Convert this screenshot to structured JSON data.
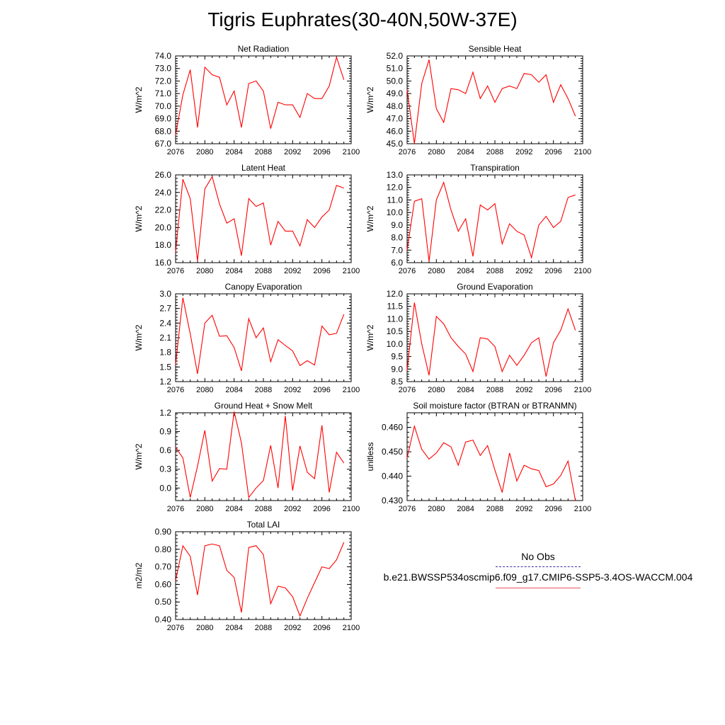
{
  "title": "Tigris Euphrates(30-40N,50W-37E)",
  "legend": {
    "obs_label": "No Obs",
    "model_label": "b.e21.BWSSP534oscmip6.f09_g17.CMIP6-SSP5-3.4OS-WACCM.004",
    "obs_color": "#3b2f9a",
    "model_color": "#e8555f"
  },
  "series_color": "#ff0000",
  "chart_data": [
    {
      "type": "line",
      "title": "Net Radiation",
      "ylabel": "W/m^2",
      "xlim": [
        2076,
        2100
      ],
      "ylim": [
        67.0,
        74.0
      ],
      "xticks": [
        2076,
        2080,
        2084,
        2088,
        2092,
        2096,
        2100
      ],
      "yticks": [
        "67.0",
        "68.0",
        "69.0",
        "70.0",
        "71.0",
        "72.0",
        "73.0",
        "74.0"
      ],
      "x": [
        2076,
        2077,
        2078,
        2079,
        2080,
        2081,
        2082,
        2083,
        2084,
        2085,
        2086,
        2087,
        2088,
        2089,
        2090,
        2091,
        2092,
        2093,
        2094,
        2095,
        2096,
        2097,
        2098,
        2099
      ],
      "values": [
        67.7,
        70.9,
        72.9,
        68.3,
        73.1,
        72.5,
        72.3,
        70.1,
        71.2,
        68.3,
        71.8,
        72.0,
        71.2,
        68.2,
        70.3,
        70.1,
        70.1,
        69.1,
        71.0,
        70.6,
        70.6,
        71.6,
        73.9,
        72.1
      ]
    },
    {
      "type": "line",
      "title": "Sensible Heat",
      "ylabel": "W/m^2",
      "xlim": [
        2076,
        2100
      ],
      "ylim": [
        45.0,
        52.0
      ],
      "xticks": [
        2076,
        2080,
        2084,
        2088,
        2092,
        2096,
        2100
      ],
      "yticks": [
        "45.0",
        "46.0",
        "47.0",
        "48.0",
        "49.0",
        "50.0",
        "51.0",
        "52.0"
      ],
      "x": [
        2076,
        2077,
        2078,
        2079,
        2080,
        2081,
        2082,
        2083,
        2084,
        2085,
        2086,
        2087,
        2088,
        2089,
        2090,
        2091,
        2092,
        2093,
        2094,
        2095,
        2096,
        2097,
        2098,
        2099
      ],
      "values": [
        49.3,
        45.0,
        49.8,
        51.7,
        47.8,
        46.7,
        49.4,
        49.3,
        49.0,
        50.7,
        48.6,
        49.6,
        48.3,
        49.4,
        49.6,
        49.4,
        50.6,
        50.5,
        49.9,
        50.5,
        48.3,
        49.7,
        48.6,
        47.2
      ]
    },
    {
      "type": "line",
      "title": "Latent Heat",
      "ylabel": "W/m^2",
      "xlim": [
        2076,
        2100
      ],
      "ylim": [
        16.0,
        26.0
      ],
      "xticks": [
        2076,
        2080,
        2084,
        2088,
        2092,
        2096,
        2100
      ],
      "yticks": [
        "16.0",
        "18.0",
        "20.0",
        "22.0",
        "24.0",
        "26.0"
      ],
      "x": [
        2076,
        2077,
        2078,
        2079,
        2080,
        2081,
        2082,
        2083,
        2084,
        2085,
        2086,
        2087,
        2088,
        2089,
        2090,
        2091,
        2092,
        2093,
        2094,
        2095,
        2096,
        2097,
        2098,
        2099
      ],
      "values": [
        17.2,
        25.5,
        23.3,
        16.2,
        24.4,
        25.8,
        22.7,
        20.5,
        21.0,
        16.8,
        23.3,
        22.4,
        22.8,
        18.0,
        20.7,
        19.6,
        19.6,
        17.9,
        20.9,
        20.0,
        21.2,
        22.0,
        24.8,
        24.5
      ]
    },
    {
      "type": "line",
      "title": "Transpiration",
      "ylabel": "W/m^2",
      "xlim": [
        2076,
        2100
      ],
      "ylim": [
        6.0,
        13.0
      ],
      "xticks": [
        2076,
        2080,
        2084,
        2088,
        2092,
        2096,
        2100
      ],
      "yticks": [
        "6.0",
        "7.0",
        "8.0",
        "9.0",
        "10.0",
        "11.0",
        "12.0",
        "13.0"
      ],
      "x": [
        2076,
        2077,
        2078,
        2079,
        2080,
        2081,
        2082,
        2083,
        2084,
        2085,
        2086,
        2087,
        2088,
        2089,
        2090,
        2091,
        2092,
        2093,
        2094,
        2095,
        2096,
        2097,
        2098,
        2099
      ],
      "values": [
        7.0,
        10.9,
        11.1,
        6.1,
        11.0,
        12.4,
        10.2,
        8.5,
        9.5,
        6.5,
        10.6,
        10.2,
        10.7,
        7.5,
        9.1,
        8.5,
        8.2,
        6.4,
        9.0,
        9.7,
        8.8,
        9.3,
        11.2,
        11.4
      ]
    },
    {
      "type": "line",
      "title": "Canopy Evaporation",
      "ylabel": "W/m^2",
      "xlim": [
        2076,
        2100
      ],
      "ylim": [
        1.2,
        3.0
      ],
      "xticks": [
        2076,
        2080,
        2084,
        2088,
        2092,
        2096,
        2100
      ],
      "yticks": [
        "1.2",
        "1.5",
        "1.8",
        "2.1",
        "2.4",
        "2.7",
        "3.0"
      ],
      "x": [
        2076,
        2077,
        2078,
        2079,
        2080,
        2081,
        2082,
        2083,
        2084,
        2085,
        2086,
        2087,
        2088,
        2089,
        2090,
        2091,
        2092,
        2093,
        2094,
        2095,
        2096,
        2097,
        2098,
        2099
      ],
      "values": [
        1.55,
        2.92,
        2.18,
        1.36,
        2.4,
        2.56,
        2.13,
        2.14,
        1.9,
        1.42,
        2.49,
        2.1,
        2.3,
        1.61,
        2.06,
        1.94,
        1.83,
        1.53,
        1.63,
        1.54,
        2.34,
        2.16,
        2.19,
        2.58
      ]
    },
    {
      "type": "line",
      "title": "Ground Evaporation",
      "ylabel": "W/m^2",
      "xlim": [
        2076,
        2100
      ],
      "ylim": [
        8.5,
        12.0
      ],
      "xticks": [
        2076,
        2080,
        2084,
        2088,
        2092,
        2096,
        2100
      ],
      "yticks": [
        "8.5",
        "9.0",
        "9.5",
        "10.0",
        "10.5",
        "11.0",
        "11.5",
        "12.0"
      ],
      "x": [
        2076,
        2077,
        2078,
        2079,
        2080,
        2081,
        2082,
        2083,
        2084,
        2085,
        2086,
        2087,
        2088,
        2089,
        2090,
        2091,
        2092,
        2093,
        2094,
        2095,
        2096,
        2097,
        2098,
        2099
      ],
      "values": [
        8.95,
        11.65,
        10.0,
        8.75,
        11.1,
        10.8,
        10.25,
        9.9,
        9.6,
        8.9,
        10.25,
        10.2,
        9.9,
        8.9,
        9.55,
        9.15,
        9.55,
        10.05,
        10.25,
        8.7,
        10.05,
        10.55,
        11.4,
        10.55
      ]
    },
    {
      "type": "line",
      "title": "Ground Heat + Snow Melt",
      "ylabel": "W/m^2",
      "xlim": [
        2076,
        2100
      ],
      "ylim": [
        -0.2,
        1.2
      ],
      "xticks": [
        2076,
        2080,
        2084,
        2088,
        2092,
        2096,
        2100
      ],
      "yticks": [
        "0.0",
        "0.3",
        "0.6",
        "0.9",
        "1.2"
      ],
      "ytick_values": [
        0.0,
        0.3,
        0.6,
        0.9,
        1.2
      ],
      "x": [
        2076,
        2077,
        2078,
        2079,
        2080,
        2081,
        2082,
        2083,
        2084,
        2085,
        2086,
        2087,
        2088,
        2089,
        2090,
        2091,
        2092,
        2093,
        2094,
        2095,
        2096,
        2097,
        2098,
        2099
      ],
      "values": [
        0.65,
        0.48,
        -0.15,
        0.35,
        0.92,
        0.11,
        0.31,
        0.3,
        1.22,
        0.72,
        -0.15,
        0.0,
        0.12,
        0.68,
        0.0,
        1.15,
        -0.04,
        0.67,
        0.25,
        0.15,
        1.0,
        -0.07,
        0.57,
        0.4
      ]
    },
    {
      "type": "line",
      "title": "Soil moisture factor (BTRAN or BTRANMN)",
      "ylabel": "unitless",
      "xlim": [
        2076,
        2100
      ],
      "ylim": [
        0.43,
        0.466
      ],
      "xticks": [
        2076,
        2080,
        2084,
        2088,
        2092,
        2096,
        2100
      ],
      "yticks": [
        "0.430",
        "0.440",
        "0.450",
        "0.460"
      ],
      "ytick_values": [
        0.43,
        0.44,
        0.45,
        0.46
      ],
      "x": [
        2076,
        2077,
        2078,
        2079,
        2080,
        2081,
        2082,
        2083,
        2084,
        2085,
        2086,
        2087,
        2088,
        2089,
        2090,
        2091,
        2092,
        2093,
        2094,
        2095,
        2096,
        2097,
        2098,
        2099
      ],
      "values": [
        0.4475,
        0.4605,
        0.451,
        0.447,
        0.4495,
        0.4537,
        0.452,
        0.4445,
        0.454,
        0.4548,
        0.4485,
        0.4525,
        0.4425,
        0.4333,
        0.4495,
        0.438,
        0.4445,
        0.443,
        0.4423,
        0.4357,
        0.4368,
        0.4403,
        0.4462,
        0.43
      ]
    },
    {
      "type": "line",
      "title": "Total LAI",
      "ylabel": "m2/m2",
      "xlim": [
        2076,
        2100
      ],
      "ylim": [
        0.4,
        0.9
      ],
      "xticks": [
        2076,
        2080,
        2084,
        2088,
        2092,
        2096,
        2100
      ],
      "yticks": [
        "0.40",
        "0.50",
        "0.60",
        "0.70",
        "0.80",
        "0.90"
      ],
      "x": [
        2076,
        2077,
        2078,
        2079,
        2080,
        2081,
        2082,
        2083,
        2084,
        2085,
        2086,
        2087,
        2088,
        2089,
        2090,
        2091,
        2092,
        2093,
        2094,
        2095,
        2096,
        2097,
        2098,
        2099
      ],
      "values": [
        0.62,
        0.82,
        0.76,
        0.54,
        0.82,
        0.83,
        0.82,
        0.68,
        0.64,
        0.44,
        0.81,
        0.82,
        0.77,
        0.49,
        0.59,
        0.58,
        0.53,
        0.42,
        0.52,
        0.61,
        0.7,
        0.69,
        0.74,
        0.84
      ]
    }
  ]
}
